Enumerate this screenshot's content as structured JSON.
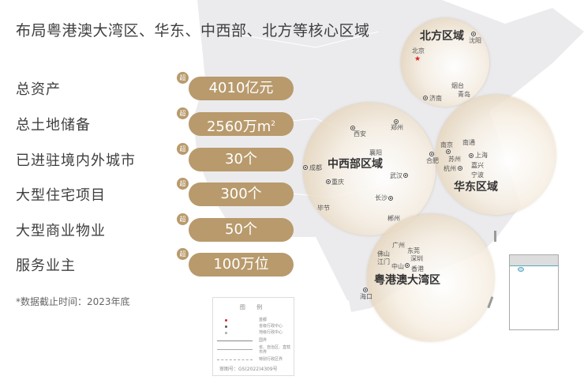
{
  "title": "布局粤港澳大湾区、华东、中西部、北方等核心区域",
  "stats": [
    {
      "label": "总资产",
      "prefix": "超",
      "value": "4010亿元"
    },
    {
      "label": "总土地储备",
      "prefix": "超",
      "value": "2560万m",
      "sup": "2"
    },
    {
      "label": "已进驻境内外城市",
      "prefix": "超",
      "value": "30个"
    },
    {
      "label": "大型住宅项目",
      "prefix": "超",
      "value": "300个"
    },
    {
      "label": "大型商业物业",
      "prefix": "超",
      "value": "50个"
    },
    {
      "label": "服务业主",
      "prefix": "超",
      "value": "100万位"
    }
  ],
  "note": "*数据截止时间：2023年底",
  "accent": "#b89a6c",
  "regions": {
    "north": "北方区域",
    "central_west": "中西部区域",
    "east": "华东区域",
    "gba": "粤港澳大湾区"
  },
  "cities": {
    "shenyang": "沈阳",
    "beijing": "北京",
    "yantai": "烟台",
    "qingdao": "青岛",
    "jinan": "济南",
    "xian": "西安",
    "zhengzhou": "郑州",
    "xiangyang": "襄阳",
    "hefei": "合肥",
    "chengdu": "成都",
    "wuhan": "武汉",
    "chongqing": "重庆",
    "changsha": "长沙",
    "bijie": "毕节",
    "chenzhou": "郴州",
    "nanjing": "南京",
    "nantong": "南通",
    "suzhou": "苏州",
    "shanghai": "上海",
    "jiaxing": "嘉兴",
    "hangzhou": "杭州",
    "ningbo": "宁波",
    "guangzhou": "广州",
    "foshan": "佛山",
    "dongguan": "东莞",
    "jiangmen": "江门",
    "shenzhen": "深圳",
    "zhongshan": "中山",
    "hongkong": "香港",
    "haikou": "海口"
  },
  "legend": {
    "title": "图 例",
    "items": [
      "首都",
      "省级行政中心",
      "地级行政中心",
      "国界",
      "省、自治区、直辖市界",
      "特别行政区界"
    ],
    "approval": "审图号：GS(2022)4309号"
  }
}
